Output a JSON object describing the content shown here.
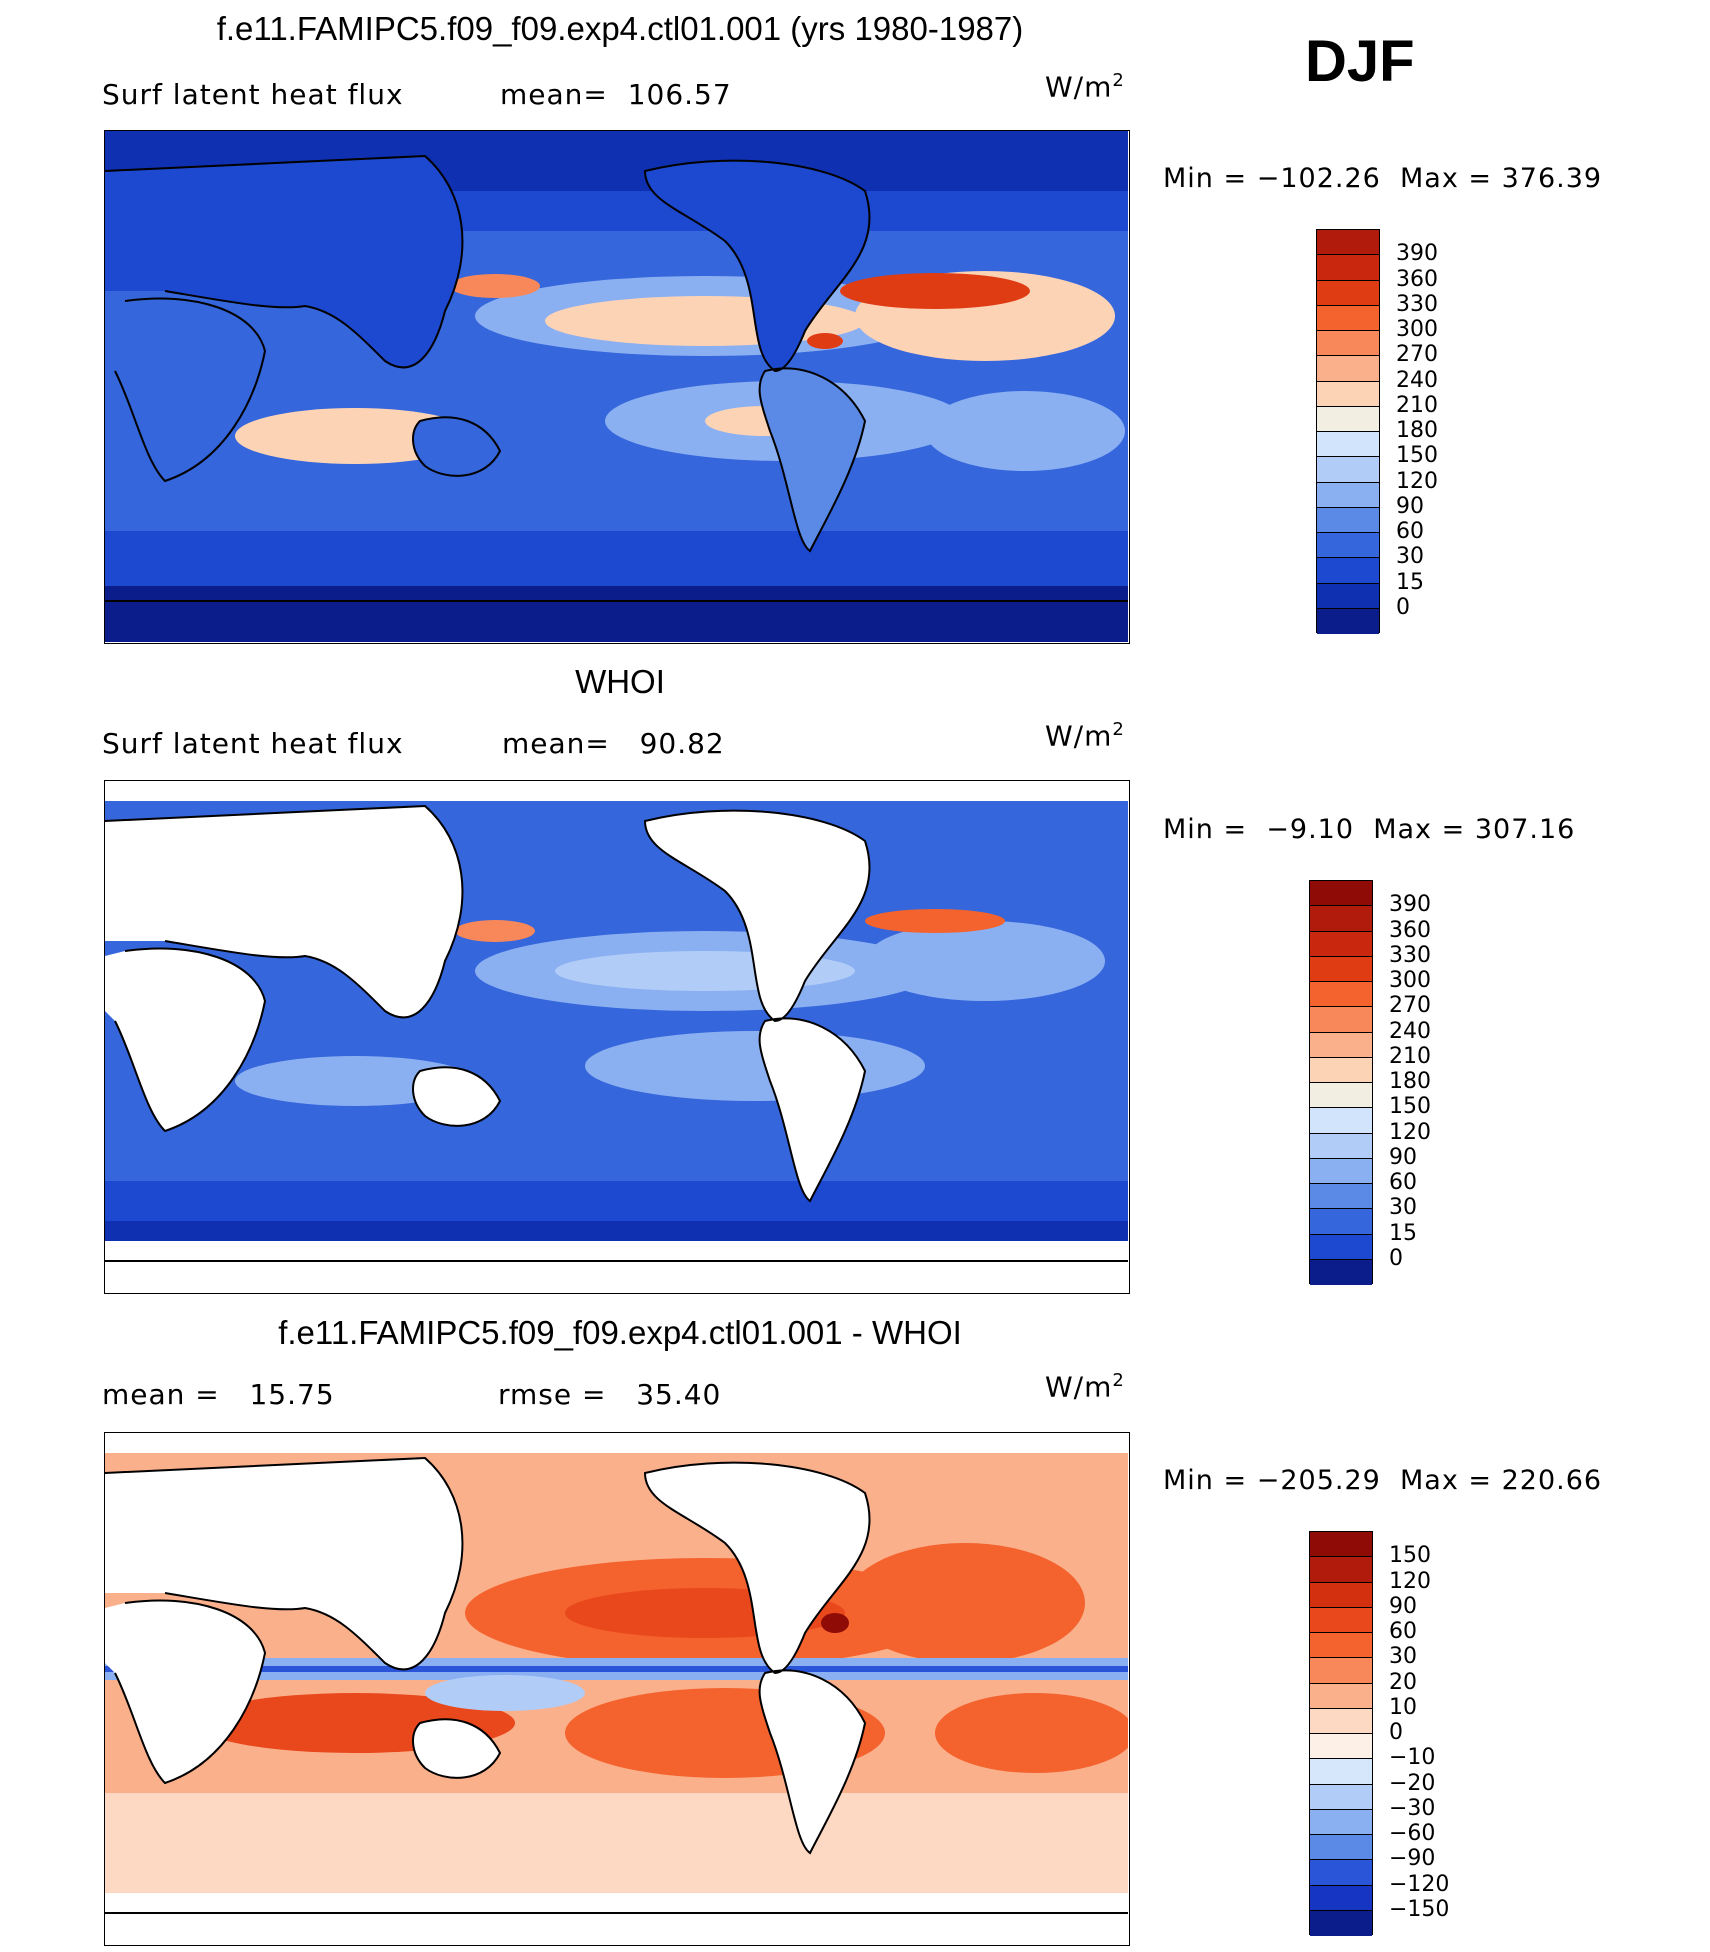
{
  "season": "DJF",
  "units": "W/m",
  "units_exp": "2",
  "panels": [
    {
      "title": "f.e11.FAMIPC5.f09_f09.exp4.ctl01.001 (yrs 1980-1987)",
      "left_label": "Surf latent heat flux",
      "stat_label": "mean=",
      "stat_value": "106.57",
      "min_label": "Min =",
      "min_value": "−102.26",
      "max_label": "Max =",
      "max_value": "376.39",
      "colorbar_labels": [
        "390",
        "360",
        "330",
        "300",
        "270",
        "240",
        "210",
        "180",
        "150",
        "120",
        "90",
        "60",
        "30",
        "15",
        "0"
      ],
      "colorbar_colors": [
        "#b01b0b",
        "#c9280f",
        "#e03c14",
        "#f4622e",
        "#f8885a",
        "#fbb08c",
        "#fdd3b6",
        "#f3eee2",
        "#d1e4fb",
        "#b1cdf7",
        "#8bb0f2",
        "#5b8ae6",
        "#3566db",
        "#1d48d0",
        "#0f30b0",
        "#0a1d8a"
      ],
      "map_variant": "model"
    },
    {
      "title": "WHOI",
      "left_label": "Surf latent heat flux",
      "stat_label": "mean=",
      "stat_value": "90.82",
      "min_label": "Min =",
      "min_value": "−9.10",
      "max_label": "Max =",
      "max_value": "307.16",
      "colorbar_labels": [
        "390",
        "360",
        "330",
        "300",
        "270",
        "240",
        "210",
        "180",
        "150",
        "120",
        "90",
        "60",
        "30",
        "15",
        "0"
      ],
      "colorbar_colors": [
        "#8e0b06",
        "#b01b0b",
        "#c9280f",
        "#e03c14",
        "#f4622e",
        "#f8885a",
        "#fbb08c",
        "#fdd3b6",
        "#f3eee2",
        "#d1e4fb",
        "#b1cdf7",
        "#8bb0f2",
        "#5b8ae6",
        "#3566db",
        "#1d48d0",
        "#0a1d8a"
      ],
      "map_variant": "obs"
    },
    {
      "title": "f.e11.FAMIPC5.f09_f09.exp4.ctl01.001 - WHOI",
      "left_label": "mean =",
      "left_value": "15.75",
      "stat_label": "rmse =",
      "stat_value": "35.40",
      "min_label": "Min =",
      "min_value": "−205.29",
      "max_label": "Max =",
      "max_value": "220.66",
      "colorbar_labels": [
        "150",
        "120",
        "90",
        "60",
        "30",
        "20",
        "10",
        "0",
        "−10",
        "−20",
        "−30",
        "−60",
        "−90",
        "−120",
        "−150"
      ],
      "colorbar_colors": [
        "#8e0b06",
        "#b01b0b",
        "#d2300f",
        "#e9481c",
        "#f4622e",
        "#f8885a",
        "#fbb08c",
        "#fdd8c2",
        "#fdf0e6",
        "#d6e6fb",
        "#b1cdf7",
        "#8bb0f2",
        "#5b8ae6",
        "#2a55d8",
        "#1635c2",
        "#0a1d8a"
      ],
      "map_variant": "diff"
    }
  ]
}
